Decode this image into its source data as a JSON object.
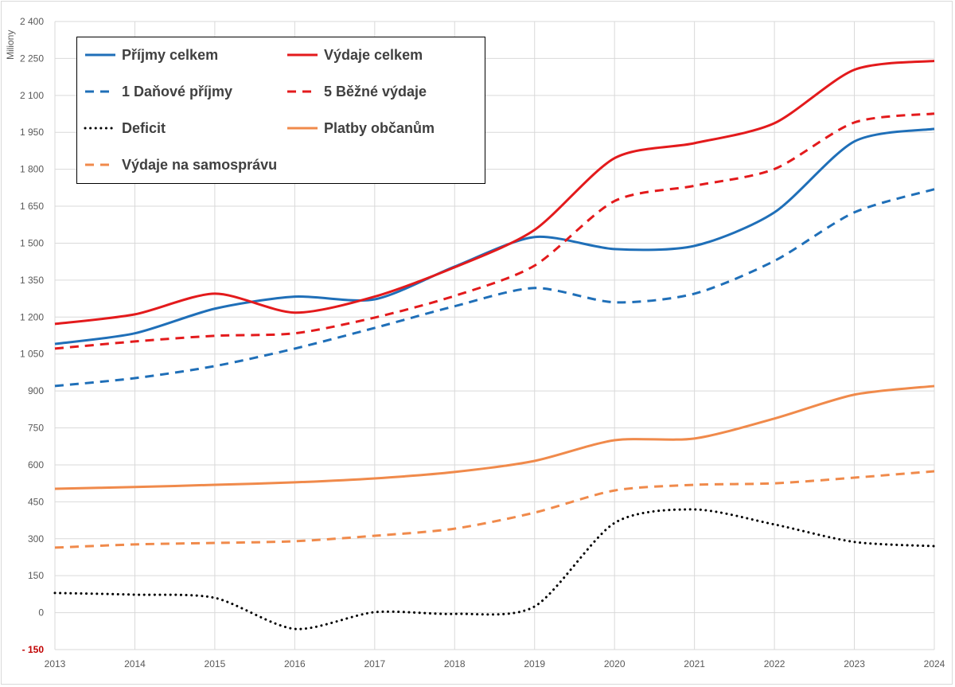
{
  "chart_data": {
    "type": "line",
    "title": "",
    "xlabel": "",
    "ylabel": "Miliony",
    "ylim": [
      -150,
      2400
    ],
    "ystep": 150,
    "grid": true,
    "legend_position": "top-left",
    "x": [
      "2013",
      "2014",
      "2015",
      "2016",
      "2017",
      "2018",
      "2019",
      "2020",
      "2021",
      "2022",
      "2023",
      "2024"
    ],
    "ytick_labels": [
      "- 150",
      "0",
      "150",
      "300",
      "450",
      "600",
      "750",
      "900",
      "1 050",
      "1 200",
      "1 350",
      "1 500",
      "1 650",
      "1 800",
      "1 950",
      "2 100",
      "2 250",
      "2 400"
    ],
    "series": [
      {
        "name": "Příjmy celkem",
        "color": "#1f6fb8",
        "dash": "solid",
        "values": [
          1091,
          1134,
          1234,
          1283,
          1272,
          1405,
          1525,
          1476,
          1489,
          1625,
          1913,
          1964
        ]
      },
      {
        "name": "Výdaje celkem",
        "color": "#e31a1c",
        "dash": "solid",
        "values": [
          1172,
          1211,
          1295,
          1218,
          1283,
          1402,
          1554,
          1845,
          1906,
          1987,
          2204,
          2240
        ]
      },
      {
        "name": "1 Daňové příjmy",
        "color": "#1f6fb8",
        "dash": "dashed",
        "values": [
          920,
          952,
          1001,
          1072,
          1156,
          1244,
          1318,
          1260,
          1295,
          1428,
          1625,
          1719
        ]
      },
      {
        "name": "5 Běžné výdaje",
        "color": "#e31a1c",
        "dash": "dashed",
        "values": [
          1072,
          1101,
          1124,
          1134,
          1198,
          1286,
          1409,
          1671,
          1733,
          1801,
          1990,
          2026
        ]
      },
      {
        "name": "Deficit",
        "color": "#000000",
        "dash": "dotted",
        "values": [
          80,
          73,
          60,
          -66,
          2,
          -5,
          25,
          364,
          419,
          358,
          287,
          270
        ]
      },
      {
        "name": "Platby občanům",
        "color": "#f08a4b",
        "dash": "solid",
        "values": [
          503,
          510,
          519,
          529,
          545,
          571,
          616,
          700,
          707,
          788,
          885,
          920
        ]
      },
      {
        "name": "Výdaje na samosprávu",
        "color": "#f08a4b",
        "dash": "dashed",
        "values": [
          264,
          277,
          283,
          290,
          312,
          341,
          406,
          496,
          519,
          525,
          548,
          574
        ]
      }
    ],
    "negative_label_color": "#c00000"
  }
}
